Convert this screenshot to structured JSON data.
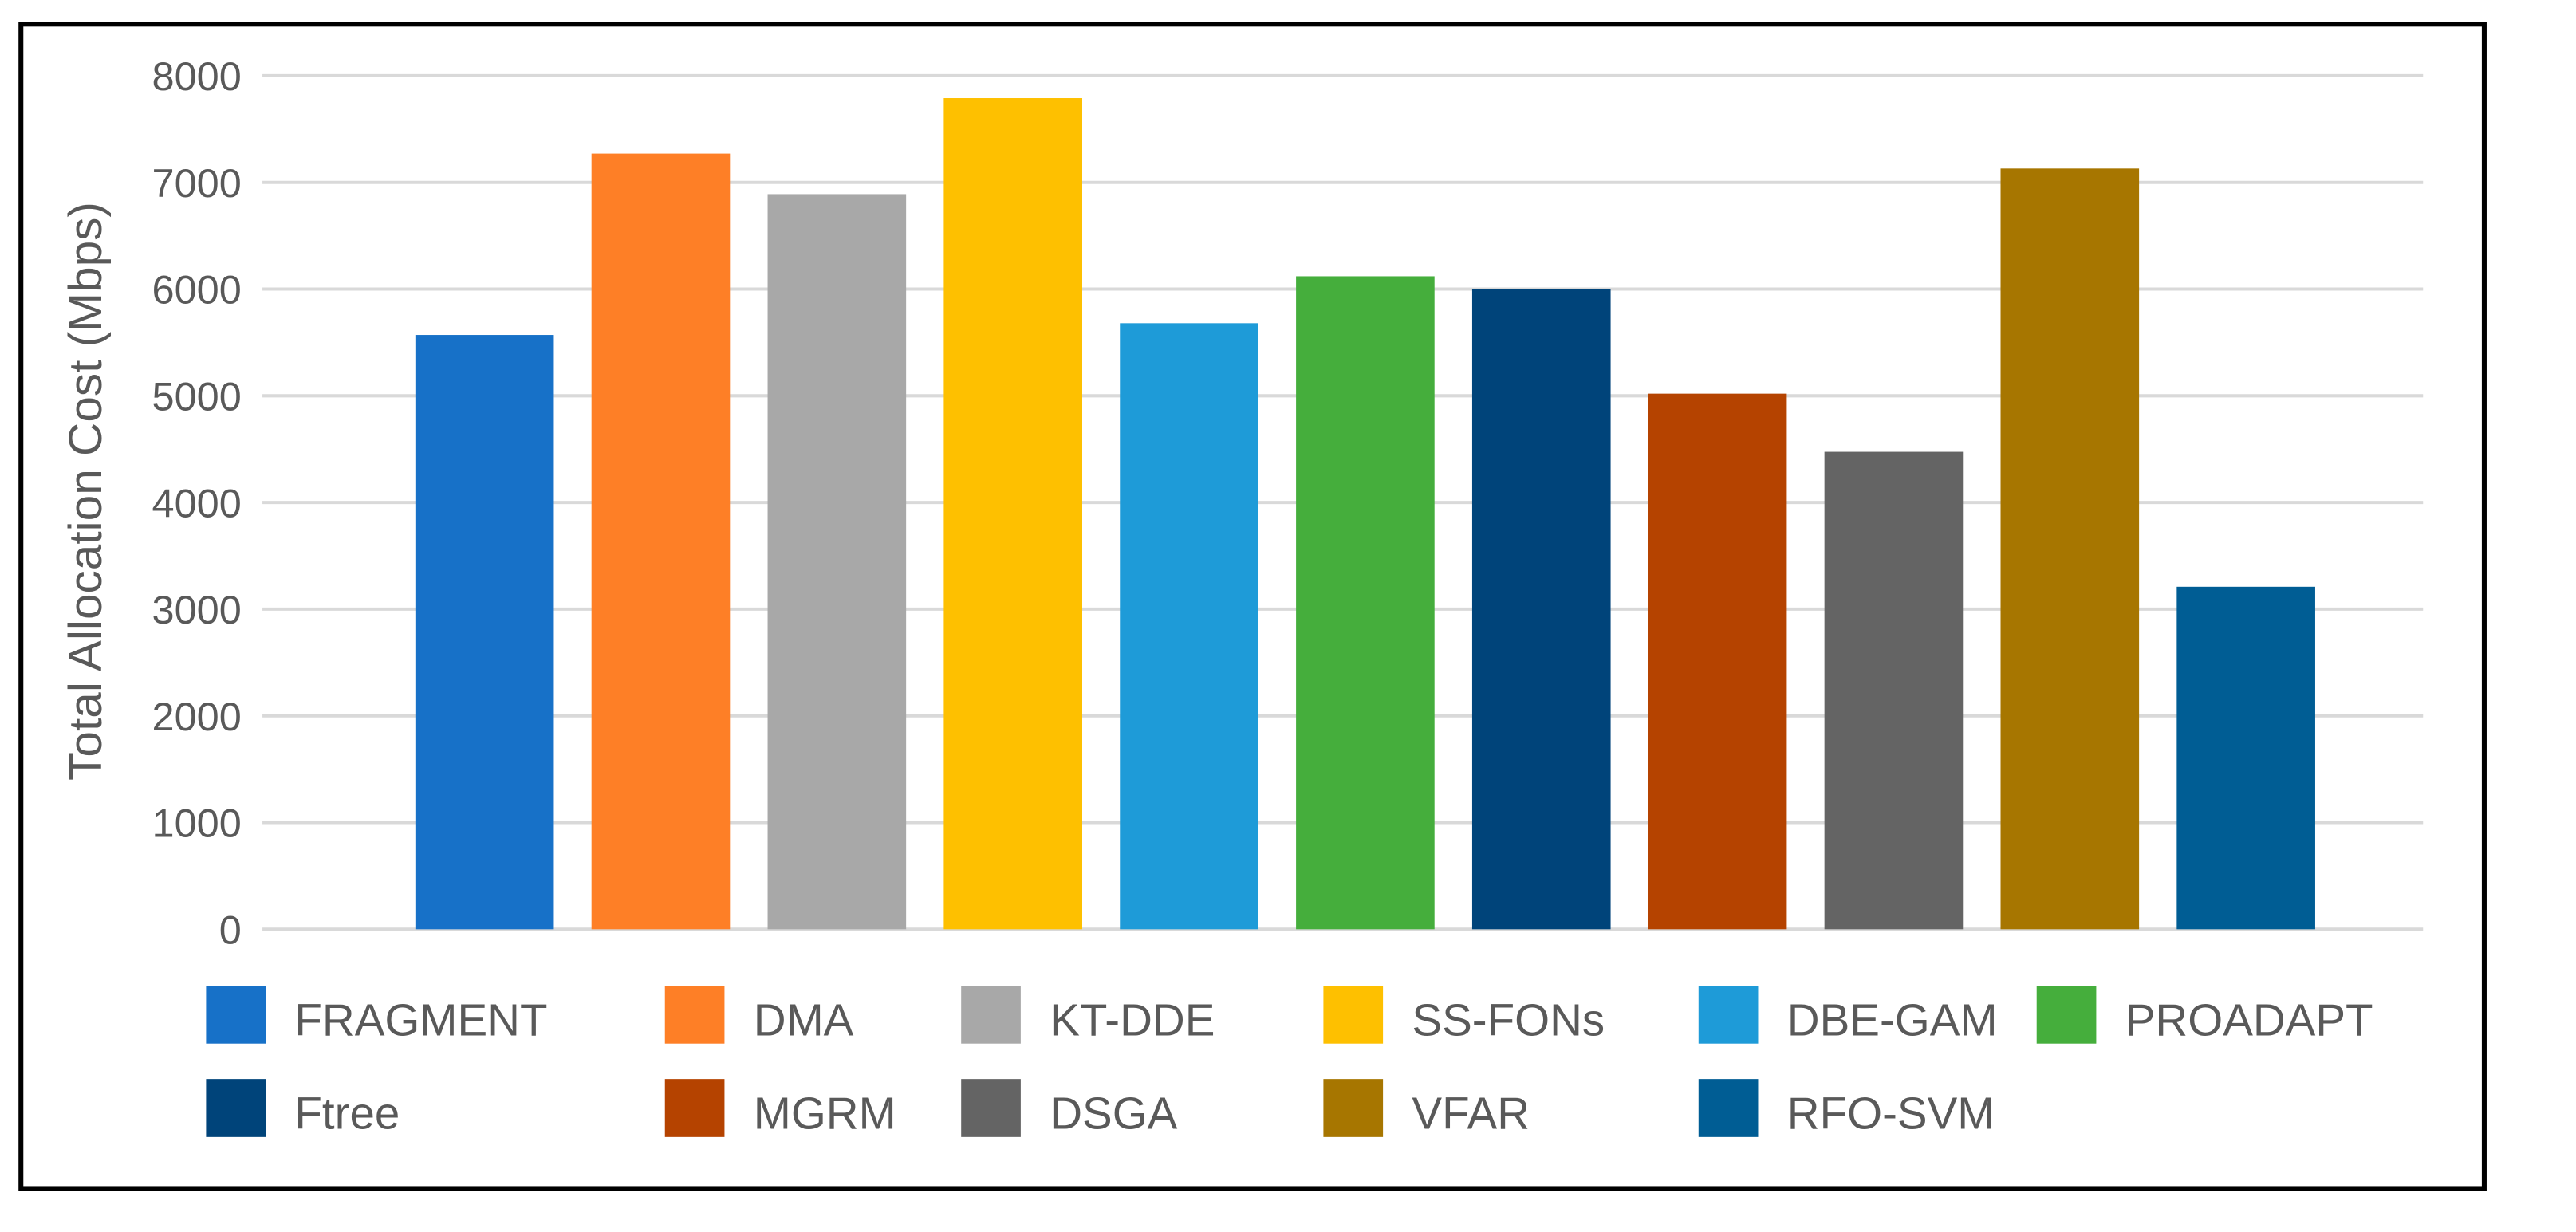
{
  "chart_data": {
    "type": "bar",
    "title": "",
    "xlabel": "",
    "ylabel": "Total Allocation Cost (Mbps)",
    "ylim": [
      0,
      8000
    ],
    "yticks": [
      0,
      1000,
      2000,
      3000,
      4000,
      5000,
      6000,
      7000,
      8000
    ],
    "grid": true,
    "legend_position": "bottom",
    "categories": [
      "FRAGMENT",
      "DMA",
      "KT-DDE",
      "SS-FONs",
      "DBE-GAM",
      "PROADAPT",
      "Ftree",
      "MGRM",
      "DSGA",
      "VFAR",
      "RFO-SVM"
    ],
    "values": [
      5570,
      7270,
      6890,
      7790,
      5680,
      6120,
      6000,
      5020,
      4475,
      7130,
      3210
    ],
    "colors": [
      "#1771C8",
      "#FE7F26",
      "#A8A8A8",
      "#FEC000",
      "#1E9BD8",
      "#45AE3C",
      "#00447A",
      "#B54300",
      "#646464",
      "#A77600",
      "#005D94"
    ]
  }
}
